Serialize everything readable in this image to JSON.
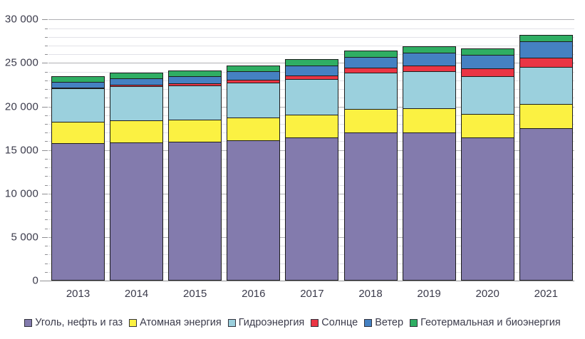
{
  "chart_data": {
    "type": "bar",
    "stacked": true,
    "title": "",
    "xlabel": "",
    "ylabel": "",
    "categories": [
      "2013",
      "2014",
      "2015",
      "2016",
      "2017",
      "2018",
      "2019",
      "2020",
      "2021"
    ],
    "series": [
      {
        "name": "Уголь, нефть и газ",
        "color": "#837BAD",
        "values": [
          15800,
          15900,
          15950,
          16100,
          16450,
          17000,
          17000,
          16450,
          17500
        ]
      },
      {
        "name": "Атомная энергия",
        "color": "#FBF142",
        "values": [
          2480,
          2540,
          2570,
          2610,
          2640,
          2700,
          2800,
          2700,
          2800
        ]
      },
      {
        "name": "Гидроэнергия",
        "color": "#9BD0DD",
        "values": [
          3790,
          3890,
          3890,
          4020,
          4060,
          4170,
          4220,
          4350,
          4270
        ]
      },
      {
        "name": "Солнце",
        "color": "#EA3544",
        "values": [
          140,
          200,
          260,
          330,
          450,
          580,
          700,
          850,
          1040
        ]
      },
      {
        "name": "Ветер",
        "color": "#4581C2",
        "values": [
          650,
          710,
          830,
          960,
          1130,
          1270,
          1420,
          1590,
          1860
        ]
      },
      {
        "name": "Геотермальная и биоэнергия",
        "color": "#2FAE63",
        "values": [
          600,
          620,
          640,
          660,
          690,
          710,
          740,
          750,
          790
        ]
      }
    ],
    "y_axis": {
      "min": 0,
      "max": 30000,
      "major_step": 5000,
      "minor_step": 1000,
      "major_tick_labels": [
        "0",
        "5 000",
        "10 000",
        "15 000",
        "20 000",
        "25 000",
        "30 000"
      ]
    },
    "ylim": [
      0,
      30000
    ],
    "grid": true,
    "legend_position": "bottom"
  }
}
